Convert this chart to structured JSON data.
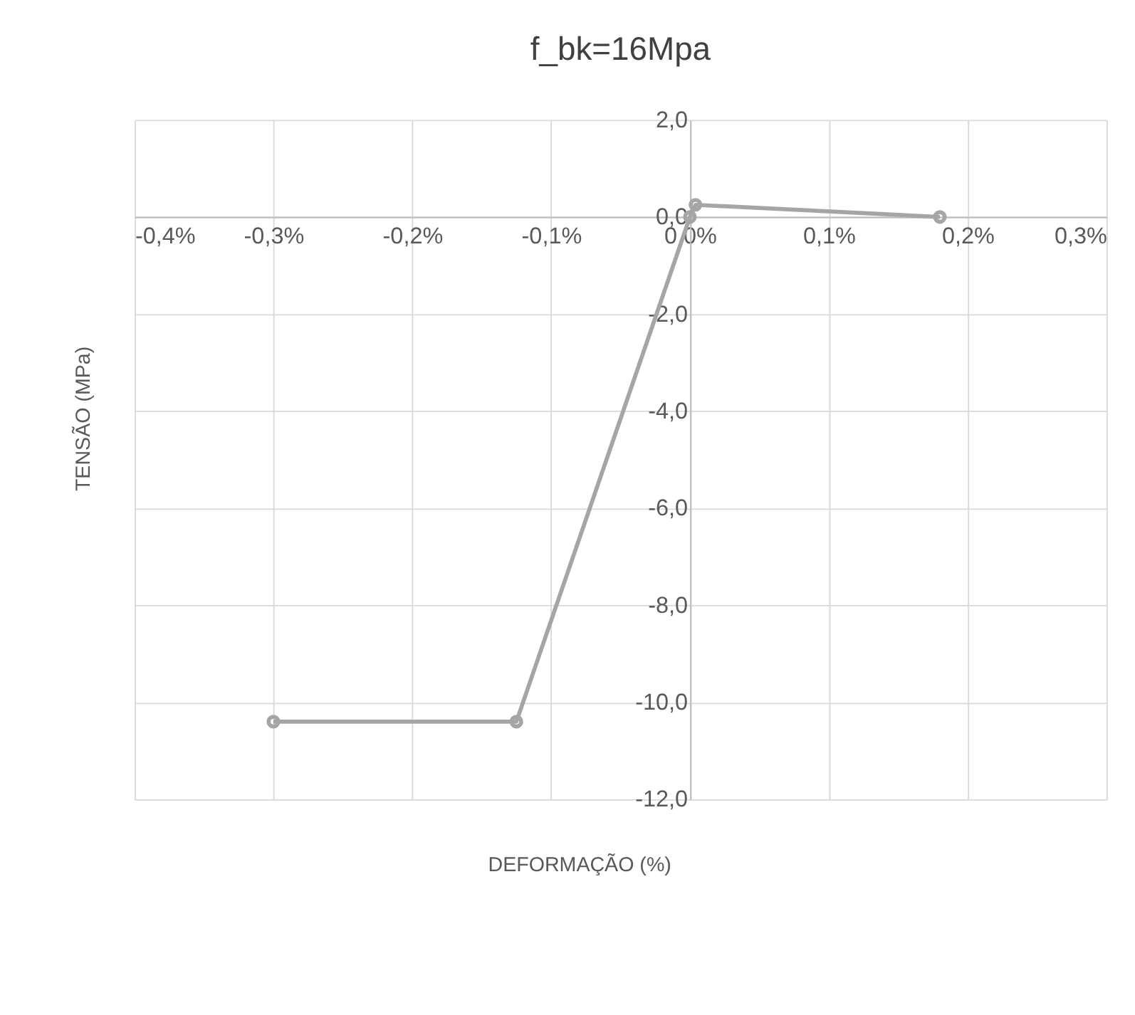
{
  "chart_data": {
    "type": "line",
    "title": "f_bk=16Mpa",
    "xlabel": "DEFORMAÇÃO (%)",
    "ylabel": "TENSÃO (MPa)",
    "x": [
      -0.3,
      -0.125,
      0,
      0.004,
      0.18
    ],
    "series": [
      {
        "color": "#a5a5a5",
        "values": [
          -10.4,
          -10.4,
          0,
          0.25,
          0
        ]
      }
    ],
    "xlim": [
      -0.4,
      0.3
    ],
    "xticks": [
      {
        "value": -0.4,
        "label": "-0,4%"
      },
      {
        "value": -0.3,
        "label": "-0,3%"
      },
      {
        "value": -0.2,
        "label": "-0,2%"
      },
      {
        "value": -0.1,
        "label": "-0,1%"
      },
      {
        "value": 0,
        "label": "0,0%"
      },
      {
        "value": 0.1,
        "label": "0,1%"
      },
      {
        "value": 0.2,
        "label": "0,2%"
      },
      {
        "value": 0.3,
        "label": "0,3%"
      }
    ],
    "ylim": [
      -12,
      2
    ],
    "yticks": [
      {
        "value": -12,
        "label": "-12,0"
      },
      {
        "value": -10,
        "label": "-10,0"
      },
      {
        "value": -8,
        "label": "-8,0"
      },
      {
        "value": -6,
        "label": "-6,0"
      },
      {
        "value": -4,
        "label": "-4,0"
      },
      {
        "value": -2,
        "label": "-2,0"
      },
      {
        "value": 0,
        "label": "0,0"
      },
      {
        "value": 2,
        "label": "2,0"
      }
    ],
    "grid": true,
    "marker": "circle",
    "line_style": "solid"
  }
}
